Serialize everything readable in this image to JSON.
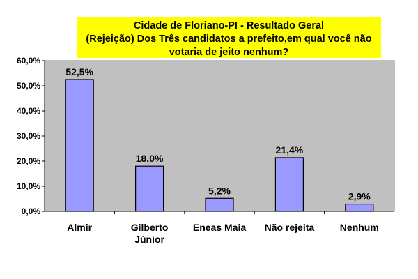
{
  "chart_data": {
    "type": "bar",
    "title_lines": [
      "Cidade de Floriano-PI - Resultado Geral",
      "(Rejeição) Dos Três candidatos a prefeito,em qual você não",
      "votaria de jeito nenhum?"
    ],
    "categories": [
      [
        "Almir"
      ],
      [
        "Gilberto",
        "Júnior"
      ],
      [
        "Eneas Maia"
      ],
      [
        "Não rejeita"
      ],
      [
        "Nenhum"
      ]
    ],
    "values": [
      52.5,
      18.0,
      5.2,
      21.4,
      2.9
    ],
    "data_labels": [
      "52,5%",
      "18,0%",
      "5,2%",
      "21,4%",
      "2,9%"
    ],
    "yticks": [
      "0,0%",
      "10,0%",
      "20,0%",
      "30,0%",
      "40,0%",
      "50,0%",
      "60,0%"
    ],
    "ylim": [
      0,
      60
    ],
    "grid": false,
    "xlabel": "",
    "ylabel": "",
    "colors": {
      "bar_fill": "#9999ff",
      "bar_stroke": "#000000",
      "plot_bg": "#c0c0c0",
      "title_bg": "#ffff00"
    }
  }
}
